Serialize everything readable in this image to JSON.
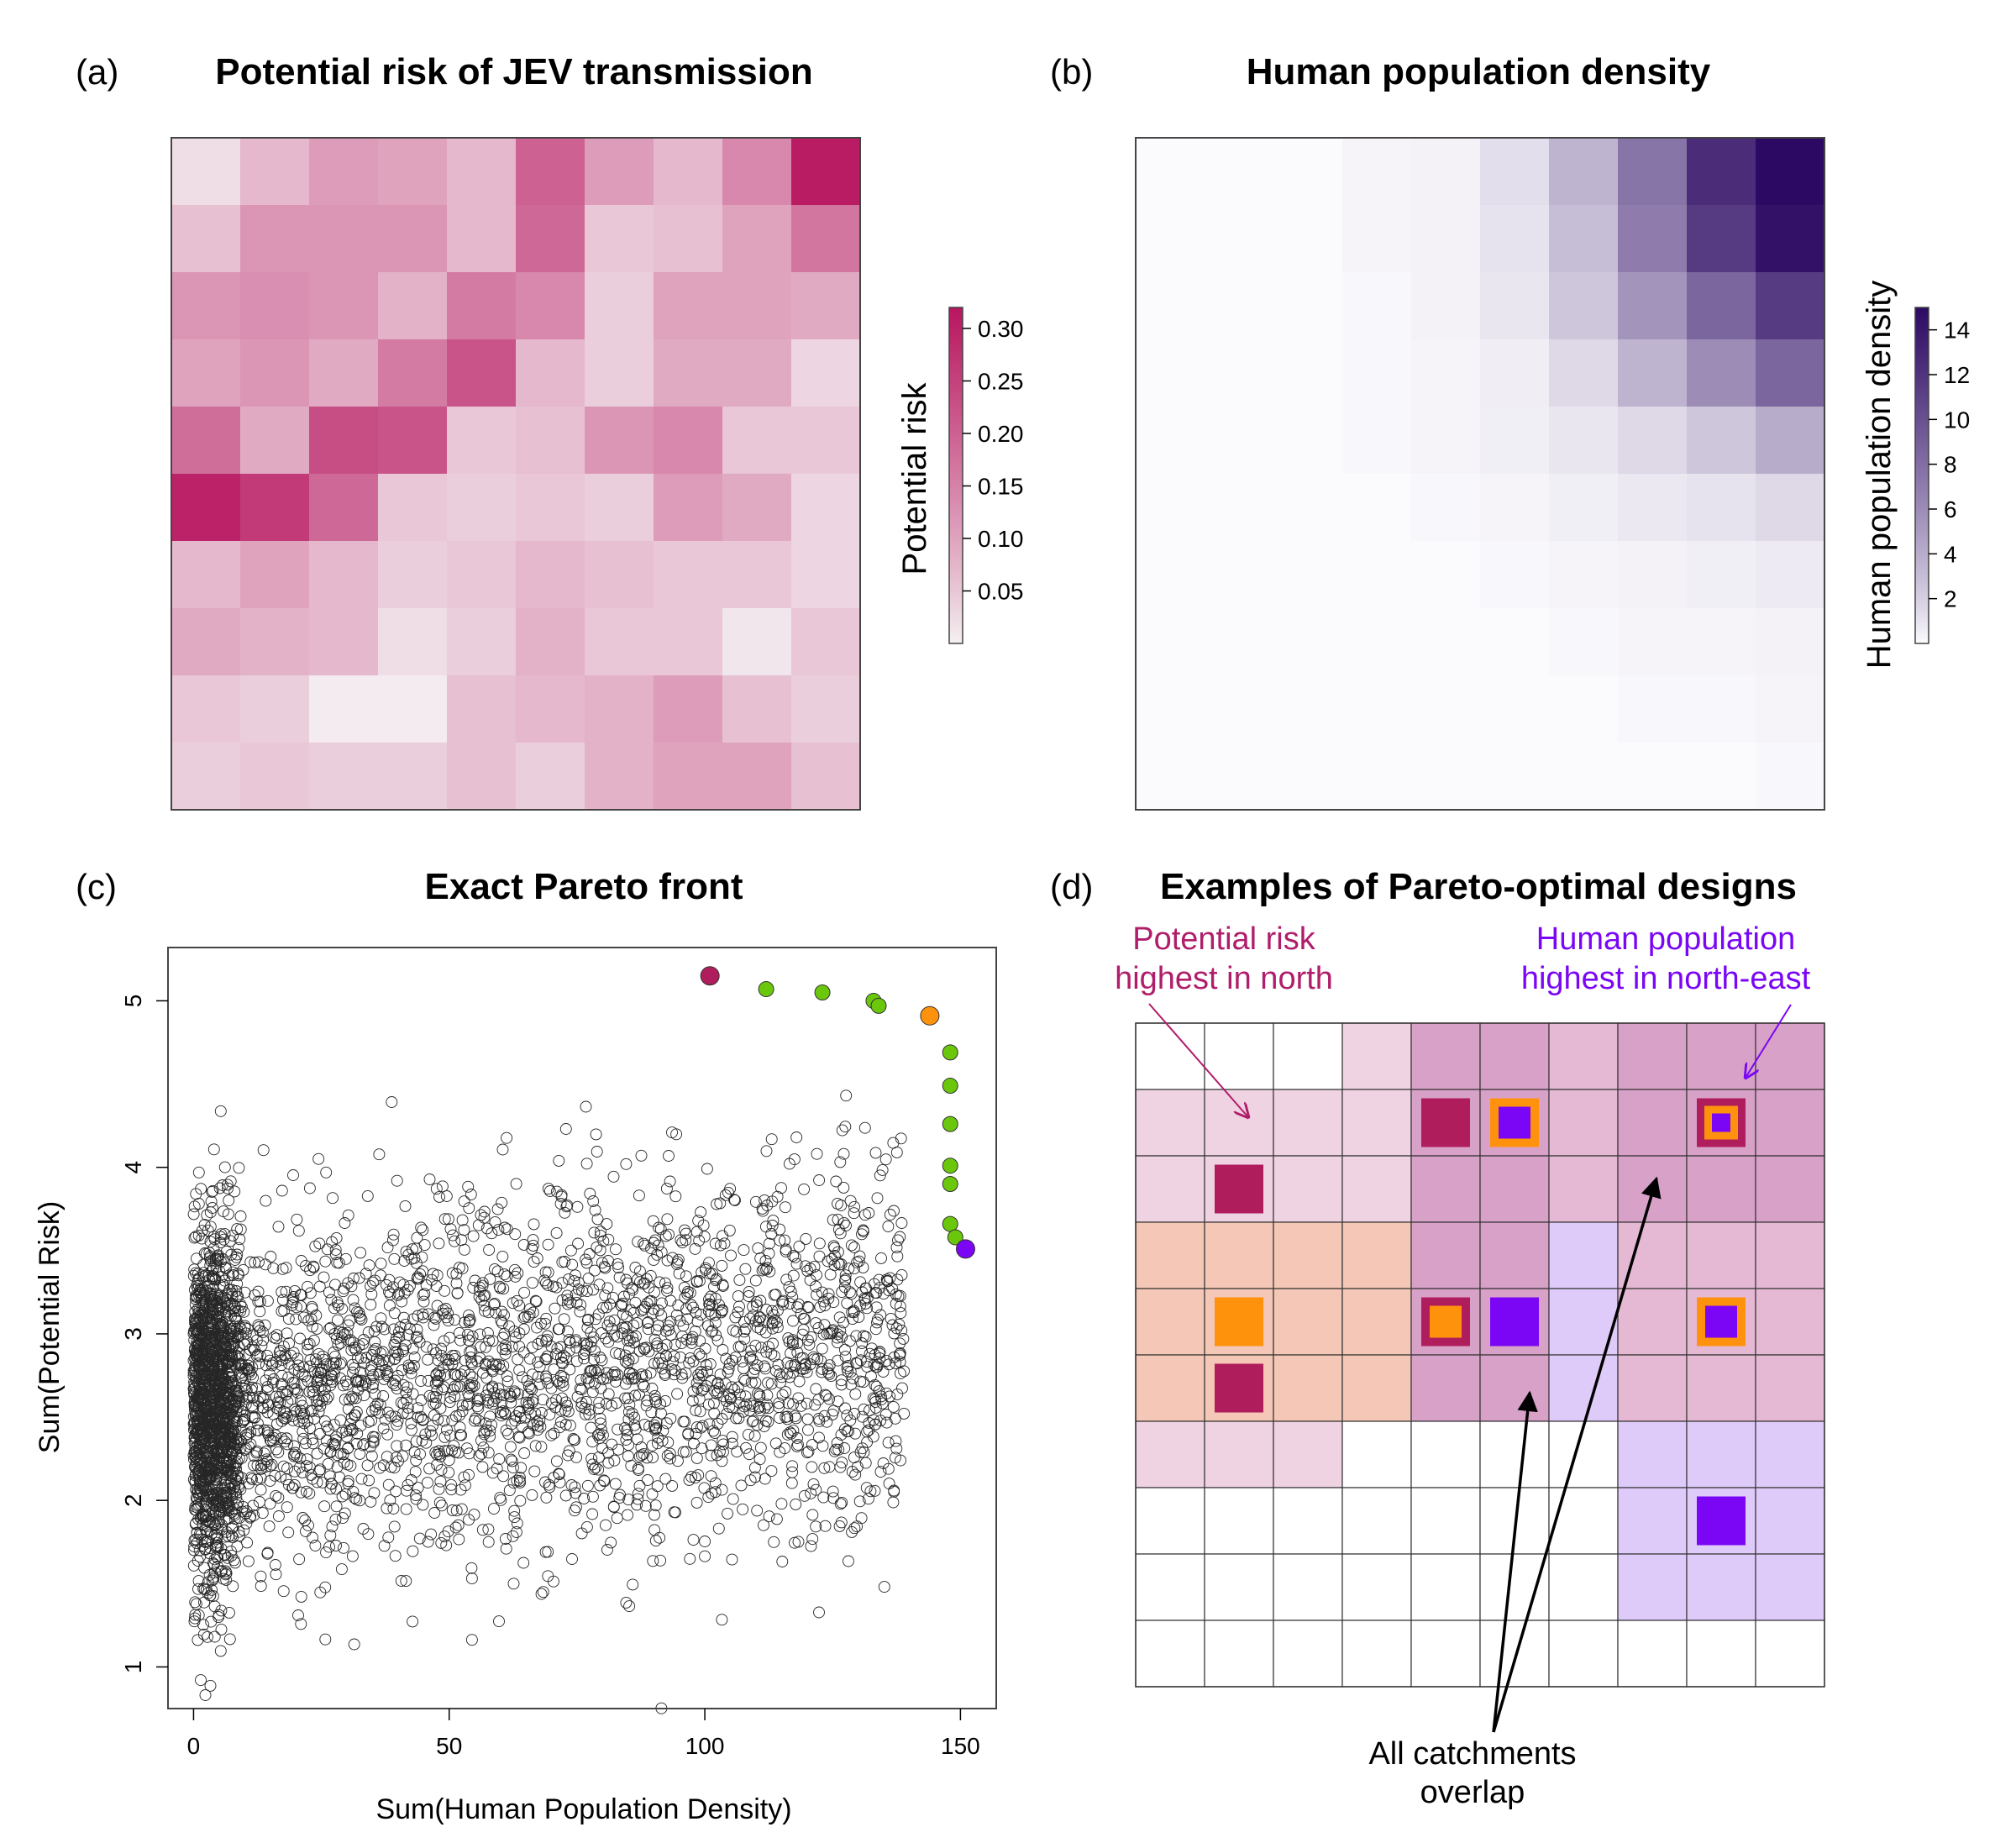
{
  "panels": {
    "a": {
      "label": "(a)",
      "title": "Potential risk of JEV transmission"
    },
    "b": {
      "label": "(b)",
      "title": "Human population density"
    },
    "c": {
      "label": "(c)",
      "title": "Exact Pareto front"
    },
    "d": {
      "label": "(d)",
      "title": "Examples of Pareto-optimal designs"
    }
  },
  "colors": {
    "risk_low": "#f4f0f2",
    "risk_high": "#b8165f",
    "pop_low": "#fbfafd",
    "pop_high": "#2c0a63",
    "pareto_green": "#6ac70c",
    "pareto_risk": "#b01d5c",
    "pareto_orange": "#ff920c",
    "pareto_purple": "#7a06f5",
    "annot_risk": "#b01d6a",
    "annot_pop": "#7a06f5"
  },
  "chart_data": [
    {
      "type": "heatmap",
      "panel": "a",
      "title": "Potential risk of JEV transmission",
      "colorbar": {
        "label": "Potential risk",
        "ticks": [
          "0.05",
          "0.10",
          "0.15",
          "0.20",
          "0.25",
          "0.30"
        ],
        "range": [
          0,
          0.32
        ]
      },
      "grid": [
        [
          0.02,
          0.07,
          0.11,
          0.1,
          0.07,
          0.2,
          0.11,
          0.07,
          0.14,
          0.31
        ],
        [
          0.06,
          0.12,
          0.12,
          0.12,
          0.07,
          0.19,
          0.05,
          0.06,
          0.1,
          0.17
        ],
        [
          0.12,
          0.13,
          0.12,
          0.08,
          0.16,
          0.14,
          0.04,
          0.1,
          0.1,
          0.09
        ],
        [
          0.1,
          0.12,
          0.09,
          0.16,
          0.22,
          0.07,
          0.04,
          0.09,
          0.09,
          0.03
        ],
        [
          0.18,
          0.09,
          0.23,
          0.22,
          0.05,
          0.06,
          0.12,
          0.14,
          0.05,
          0.05
        ],
        [
          0.3,
          0.26,
          0.19,
          0.05,
          0.04,
          0.05,
          0.04,
          0.11,
          0.09,
          0.03
        ],
        [
          0.07,
          0.1,
          0.07,
          0.04,
          0.05,
          0.07,
          0.06,
          0.05,
          0.05,
          0.03
        ],
        [
          0.09,
          0.08,
          0.07,
          0.02,
          0.04,
          0.08,
          0.05,
          0.05,
          0.01,
          0.05
        ],
        [
          0.05,
          0.04,
          0.005,
          0.005,
          0.06,
          0.07,
          0.08,
          0.11,
          0.06,
          0.04
        ],
        [
          0.04,
          0.05,
          0.04,
          0.04,
          0.06,
          0.04,
          0.08,
          0.1,
          0.1,
          0.06
        ]
      ]
    },
    {
      "type": "heatmap",
      "panel": "b",
      "title": "Human population density",
      "colorbar": {
        "label": "Human population density",
        "ticks": [
          "2",
          "4",
          "6",
          "8",
          "10",
          "12",
          "14"
        ],
        "range": [
          0,
          15
        ]
      },
      "grid": [
        [
          0,
          0,
          0,
          0.2,
          0.3,
          1.2,
          3.5,
          7.5,
          12.5,
          15
        ],
        [
          0,
          0,
          0,
          0.2,
          0.3,
          1.0,
          3.0,
          7.0,
          11.5,
          14.5
        ],
        [
          0,
          0,
          0,
          0.1,
          0.3,
          0.8,
          2.5,
          5.5,
          8.5,
          11.5
        ],
        [
          0,
          0,
          0,
          0.1,
          0.2,
          0.5,
          1.5,
          3.5,
          6.0,
          8.5
        ],
        [
          0,
          0,
          0,
          0.1,
          0.2,
          0.4,
          0.8,
          1.5,
          2.5,
          4.0
        ],
        [
          0,
          0,
          0,
          0,
          0.1,
          0.2,
          0.4,
          0.7,
          1.0,
          1.5
        ],
        [
          0,
          0,
          0,
          0,
          0,
          0.1,
          0.2,
          0.3,
          0.4,
          0.6
        ],
        [
          0,
          0,
          0,
          0,
          0,
          0,
          0.1,
          0.2,
          0.2,
          0.3
        ],
        [
          0,
          0,
          0,
          0,
          0,
          0,
          0,
          0.1,
          0.1,
          0.2
        ],
        [
          0,
          0,
          0,
          0,
          0,
          0,
          0,
          0,
          0,
          0.1
        ]
      ]
    },
    {
      "type": "scatter",
      "panel": "c",
      "title": "Exact Pareto front",
      "xlabel": "Sum(Human Population Density)",
      "ylabel": "Sum(Potential Risk)",
      "xlim": [
        -5,
        157
      ],
      "ylim": [
        0.75,
        5.32
      ],
      "xticks": [
        "0",
        "50",
        "100",
        "150"
      ],
      "yticks": [
        "1",
        "2",
        "3",
        "4",
        "5"
      ],
      "cloud_points": 9000,
      "pareto_front": [
        {
          "x": 101,
          "y": 5.15,
          "role": "risk"
        },
        {
          "x": 112,
          "y": 5.07,
          "role": "mid"
        },
        {
          "x": 123,
          "y": 5.05,
          "role": "mid"
        },
        {
          "x": 133,
          "y": 5.0,
          "role": "mid"
        },
        {
          "x": 134,
          "y": 4.97,
          "role": "mid"
        },
        {
          "x": 144,
          "y": 4.91,
          "role": "orange"
        },
        {
          "x": 148,
          "y": 4.69,
          "role": "mid"
        },
        {
          "x": 148,
          "y": 4.49,
          "role": "mid"
        },
        {
          "x": 148,
          "y": 4.26,
          "role": "mid"
        },
        {
          "x": 148,
          "y": 4.01,
          "role": "mid"
        },
        {
          "x": 148,
          "y": 3.9,
          "role": "mid"
        },
        {
          "x": 148,
          "y": 3.66,
          "role": "mid"
        },
        {
          "x": 149,
          "y": 3.58,
          "role": "mid"
        },
        {
          "x": 151,
          "y": 3.51,
          "role": "pop"
        }
      ]
    },
    {
      "type": "heatmap",
      "panel": "d",
      "title": "Examples of Pareto-optimal designs",
      "grid": [
        [
          "w",
          "w",
          "w",
          "lr",
          "mr",
          "mr",
          "lr2",
          "mr",
          "mr",
          "mr"
        ],
        [
          "lr",
          "lr",
          "lr",
          "lr",
          "mr",
          "mr",
          "lr2",
          "mr",
          "mr",
          "mr"
        ],
        [
          "lr",
          "lr",
          "lr",
          "lr",
          "mr",
          "mr",
          "lr2",
          "mr",
          "mr",
          "mr"
        ],
        [
          "or",
          "or",
          "or",
          "or",
          "mr",
          "mr",
          "lv",
          "lr2",
          "lr2",
          "lr2"
        ],
        [
          "or",
          "or",
          "or",
          "or",
          "mr",
          "mr",
          "lv",
          "lr2",
          "lr2",
          "lr2"
        ],
        [
          "or",
          "or",
          "or",
          "or",
          "mr",
          "mr",
          "lv",
          "lr2",
          "lr2",
          "lr2"
        ],
        [
          "lr",
          "lr",
          "lr",
          "w",
          "w",
          "w",
          "w",
          "lv",
          "lv",
          "lv"
        ],
        [
          "w",
          "w",
          "w",
          "w",
          "w",
          "w",
          "w",
          "lv",
          "lv",
          "lv"
        ],
        [
          "w",
          "w",
          "w",
          "w",
          "w",
          "w",
          "w",
          "lv",
          "lv",
          "lv"
        ],
        [
          "w",
          "w",
          "w",
          "w",
          "w",
          "w",
          "w",
          "w",
          "w",
          "w"
        ]
      ],
      "cell_colors": {
        "w": "#ffffff",
        "lr": "#f0d3e2",
        "lr2": "#e5b9d3",
        "mr": "#d8a1c7",
        "or": "#f4c7b6",
        "lv": "#dfcbfa"
      },
      "markers": [
        {
          "row": 1,
          "col": 4,
          "kind": "risk"
        },
        {
          "row": 1,
          "col": 5,
          "kind": "purple-in-orange"
        },
        {
          "row": 1,
          "col": 8,
          "kind": "triple"
        },
        {
          "row": 2,
          "col": 1,
          "kind": "risk"
        },
        {
          "row": 4,
          "col": 1,
          "kind": "orange"
        },
        {
          "row": 4,
          "col": 4,
          "kind": "orange-in-risk"
        },
        {
          "row": 4,
          "col": 5,
          "kind": "purple"
        },
        {
          "row": 4,
          "col": 8,
          "kind": "purple-in-orange"
        },
        {
          "row": 5,
          "col": 1,
          "kind": "risk"
        },
        {
          "row": 7,
          "col": 8,
          "kind": "purple"
        }
      ],
      "annotations": {
        "risk": [
          "Potential risk",
          "highest in north"
        ],
        "pop": [
          "Human population",
          "highest in north-east"
        ],
        "overlap": [
          "All catchments",
          "overlap"
        ]
      }
    }
  ]
}
